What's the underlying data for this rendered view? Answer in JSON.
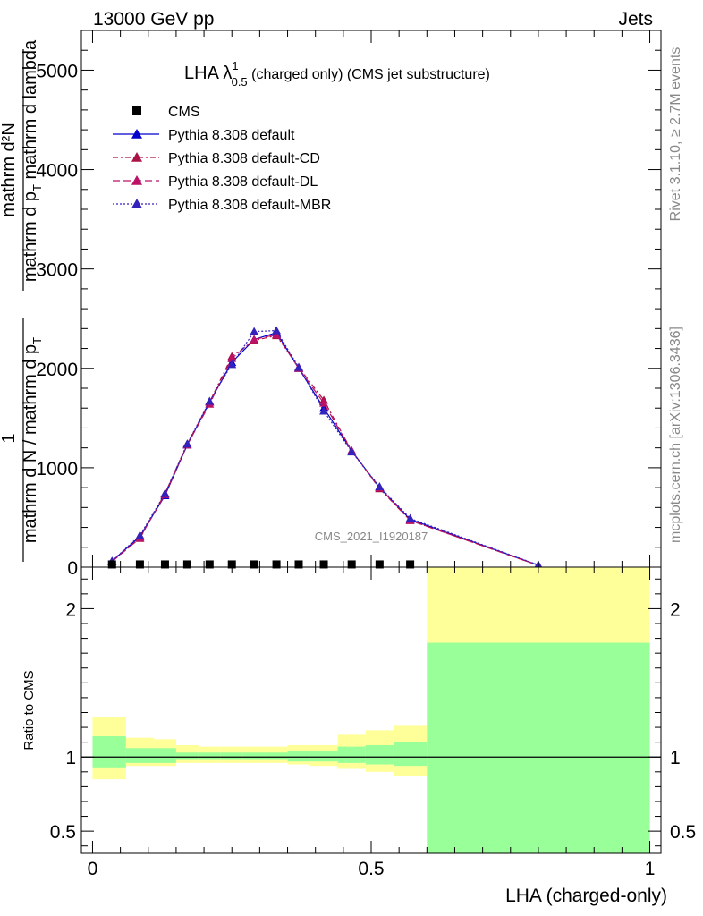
{
  "header": {
    "left": "13000 GeV pp",
    "right": "Jets"
  },
  "side_text": {
    "rivet": "Rivet 3.1.10, ≥ 2.7M events",
    "mcplots": "mcplots.cern.ch [arXiv:1306.3436]"
  },
  "watermark": "CMS_2021_I1920187",
  "chart_data": [
    {
      "type": "line",
      "title_main": "LHA λ",
      "title_sup": "1",
      "title_sub": "0.5",
      "title_rest": " (charged only) (CMS jet substructure)",
      "ylabel_top": "mathrm d²N",
      "ylabel_top_mid": "mathrm d p",
      "ylabel_top_sub": "T",
      "ylabel_top_end": " mathrm d lambda",
      "ylabel_num": "1",
      "ylabel_den": "mathrm d N / mathrm d p",
      "ylabel_den_sub": "T",
      "xlim": [
        -0.02,
        1.02
      ],
      "ylim": [
        0,
        5400
      ],
      "yticks": [
        {
          "v": 0,
          "label": "0"
        },
        {
          "v": 1000,
          "label": "1000"
        },
        {
          "v": 2000,
          "label": "2000"
        },
        {
          "v": 3000,
          "label": "3000"
        },
        {
          "v": 4000,
          "label": "4000"
        },
        {
          "v": 5000,
          "label": "5000"
        }
      ],
      "legend_position": "top-left",
      "cms": {
        "name": "CMS",
        "x": [
          0.035,
          0.085,
          0.13,
          0.17,
          0.21,
          0.25,
          0.29,
          0.33,
          0.37,
          0.415,
          0.465,
          0.515,
          0.57
        ],
        "y": [
          5,
          5,
          5,
          5,
          5,
          5,
          5,
          5,
          5,
          5,
          5,
          5,
          5
        ]
      },
      "series": [
        {
          "name": "Pythia 8.308 default",
          "color": "#0000cc",
          "dash": "",
          "x": [
            0.035,
            0.085,
            0.13,
            0.17,
            0.21,
            0.25,
            0.29,
            0.33,
            0.37,
            0.415,
            0.465,
            0.515,
            0.57,
            0.8
          ],
          "y": [
            60,
            310,
            720,
            1230,
            1660,
            2060,
            2290,
            2360,
            2000,
            1600,
            1170,
            800,
            480,
            20
          ]
        },
        {
          "name": "Pythia 8.308 default-CD",
          "color": "#aa1144",
          "dash": "6,3,2,3",
          "x": [
            0.035,
            0.085,
            0.13,
            0.17,
            0.21,
            0.25,
            0.29,
            0.33,
            0.37,
            0.415,
            0.465,
            0.515,
            0.57,
            0.8
          ],
          "y": [
            58,
            290,
            740,
            1240,
            1660,
            2120,
            2280,
            2330,
            2010,
            1680,
            1170,
            790,
            470,
            18
          ]
        },
        {
          "name": "Pythia 8.308 default-DL",
          "color": "#bb1166",
          "dash": "8,4",
          "x": [
            0.035,
            0.085,
            0.13,
            0.17,
            0.21,
            0.25,
            0.29,
            0.33,
            0.37,
            0.415,
            0.465,
            0.515,
            0.57,
            0.8
          ],
          "y": [
            55,
            295,
            730,
            1230,
            1640,
            2100,
            2290,
            2340,
            2000,
            1650,
            1170,
            800,
            470,
            18
          ]
        },
        {
          "name": "Pythia 8.308 default-MBR",
          "color": "#3322bb",
          "dash": "2,2",
          "x": [
            0.035,
            0.085,
            0.13,
            0.17,
            0.21,
            0.25,
            0.29,
            0.33,
            0.37,
            0.415,
            0.465,
            0.515,
            0.57,
            0.8
          ],
          "y": [
            62,
            320,
            740,
            1240,
            1670,
            2040,
            2370,
            2380,
            2010,
            1570,
            1160,
            810,
            490,
            22
          ]
        }
      ]
    },
    {
      "type": "area",
      "ylabel": "Ratio to CMS",
      "xlabel": "LHA (charged-only)",
      "xlim": [
        -0.02,
        1.02
      ],
      "ylim": [
        0.35,
        2.28
      ],
      "xticks": [
        {
          "v": 0,
          "label": "0"
        },
        {
          "v": 0.5,
          "label": "0.5"
        },
        {
          "v": 1,
          "label": "1"
        }
      ],
      "yticks": [
        {
          "v": 0.5,
          "label": "0.5"
        },
        {
          "v": 1,
          "label": "1"
        },
        {
          "v": 2,
          "label": "2"
        }
      ],
      "reference_line": 1,
      "colors": {
        "inner": "#99ff99",
        "outer": "#ffff99"
      },
      "bands": [
        {
          "x0": 0.0,
          "x1": 0.06,
          "g_lo": 0.93,
          "g_hi": 1.14,
          "y_lo": 0.85,
          "y_hi": 1.27
        },
        {
          "x0": 0.06,
          "x1": 0.11,
          "g_lo": 0.96,
          "g_hi": 1.06,
          "y_lo": 0.94,
          "y_hi": 1.13
        },
        {
          "x0": 0.11,
          "x1": 0.15,
          "g_lo": 0.96,
          "g_hi": 1.06,
          "y_lo": 0.94,
          "y_hi": 1.12
        },
        {
          "x0": 0.15,
          "x1": 0.19,
          "g_lo": 0.98,
          "g_hi": 1.03,
          "y_lo": 0.96,
          "y_hi": 1.08
        },
        {
          "x0": 0.19,
          "x1": 0.23,
          "g_lo": 0.98,
          "g_hi": 1.03,
          "y_lo": 0.96,
          "y_hi": 1.07
        },
        {
          "x0": 0.23,
          "x1": 0.27,
          "g_lo": 0.98,
          "g_hi": 1.03,
          "y_lo": 0.96,
          "y_hi": 1.07
        },
        {
          "x0": 0.27,
          "x1": 0.31,
          "g_lo": 0.98,
          "g_hi": 1.03,
          "y_lo": 0.96,
          "y_hi": 1.07
        },
        {
          "x0": 0.31,
          "x1": 0.35,
          "g_lo": 0.98,
          "g_hi": 1.03,
          "y_lo": 0.96,
          "y_hi": 1.07
        },
        {
          "x0": 0.35,
          "x1": 0.39,
          "g_lo": 0.97,
          "g_hi": 1.04,
          "y_lo": 0.95,
          "y_hi": 1.08
        },
        {
          "x0": 0.39,
          "x1": 0.44,
          "g_lo": 0.97,
          "g_hi": 1.04,
          "y_lo": 0.94,
          "y_hi": 1.08
        },
        {
          "x0": 0.44,
          "x1": 0.49,
          "g_lo": 0.96,
          "g_hi": 1.07,
          "y_lo": 0.92,
          "y_hi": 1.15
        },
        {
          "x0": 0.49,
          "x1": 0.54,
          "g_lo": 0.95,
          "g_hi": 1.08,
          "y_lo": 0.9,
          "y_hi": 1.18
        },
        {
          "x0": 0.54,
          "x1": 0.6,
          "g_lo": 0.94,
          "g_hi": 1.1,
          "y_lo": 0.87,
          "y_hi": 1.21
        },
        {
          "x0": 0.6,
          "x1": 1.0,
          "g_lo": 0.35,
          "g_hi": 1.77,
          "y_lo": 0.35,
          "y_hi": 2.28
        }
      ]
    }
  ]
}
